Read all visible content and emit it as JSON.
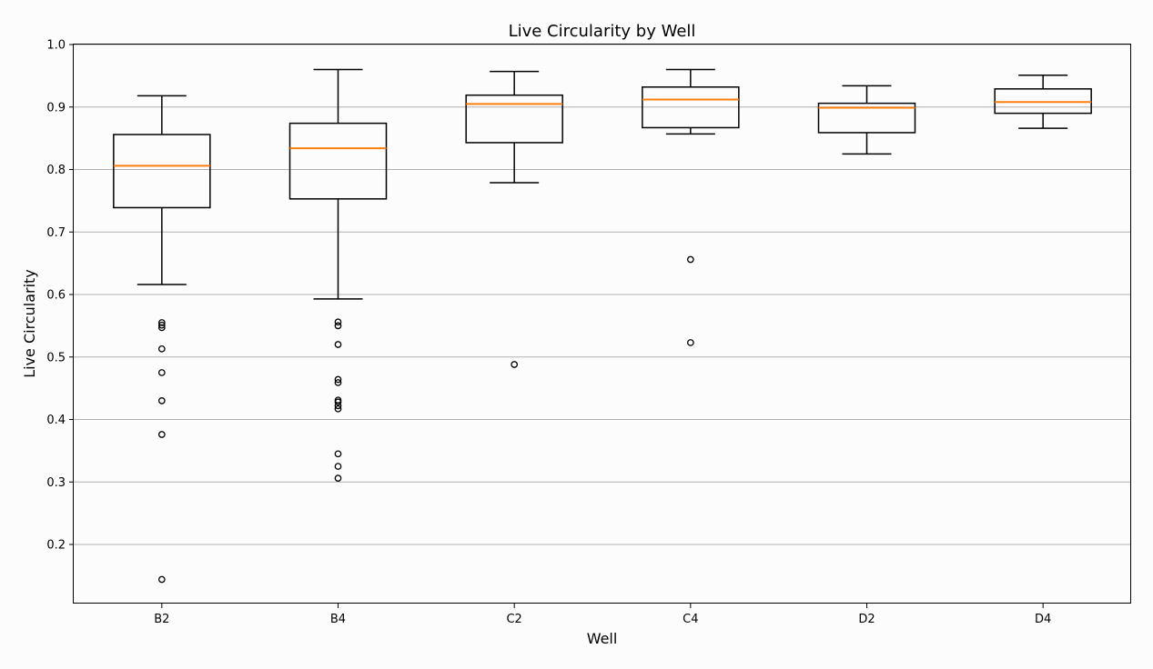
{
  "chart_data": {
    "type": "box",
    "title": "Live Circularity by Well",
    "xlabel": "Well",
    "ylabel": "Live Circularity",
    "categories": [
      "B2",
      "B4",
      "C2",
      "C4",
      "D2",
      "D4"
    ],
    "ylim": [
      0.1,
      1.0
    ],
    "yticks": [
      0.2,
      0.3,
      0.4,
      0.5,
      0.6,
      0.7,
      0.8,
      0.9,
      1.0
    ],
    "ytick_labels": [
      "0.2",
      "0.3",
      "0.4",
      "0.5",
      "0.6",
      "0.7",
      "0.8",
      "0.9",
      "1.0"
    ],
    "grid": "horizontal",
    "colors": {
      "background": "#fcfcfc",
      "box": "#000000",
      "median": "#ff7f0e",
      "grid": "#b0b0b0"
    },
    "boxes": [
      {
        "category": "B2",
        "whisker_low": 0.616,
        "q1": 0.739,
        "median": 0.806,
        "q3": 0.856,
        "whisker_high": 0.918,
        "outliers": [
          0.555,
          0.551,
          0.547,
          0.513,
          0.475,
          0.43,
          0.376,
          0.144
        ]
      },
      {
        "category": "B4",
        "whisker_low": 0.593,
        "q1": 0.753,
        "median": 0.834,
        "q3": 0.874,
        "whisker_high": 0.96,
        "outliers": [
          0.556,
          0.55,
          0.52,
          0.464,
          0.459,
          0.431,
          0.428,
          0.422,
          0.417,
          0.345,
          0.325,
          0.306
        ]
      },
      {
        "category": "C2",
        "whisker_low": 0.779,
        "q1": 0.843,
        "median": 0.905,
        "q3": 0.919,
        "whisker_high": 0.957,
        "outliers": [
          0.488
        ]
      },
      {
        "category": "C4",
        "whisker_low": 0.857,
        "q1": 0.867,
        "median": 0.912,
        "q3": 0.932,
        "whisker_high": 0.96,
        "outliers": [
          0.656,
          0.523
        ]
      },
      {
        "category": "D2",
        "whisker_low": 0.825,
        "q1": 0.859,
        "median": 0.899,
        "q3": 0.906,
        "whisker_high": 0.934,
        "outliers": []
      },
      {
        "category": "D4",
        "whisker_low": 0.866,
        "q1": 0.89,
        "median": 0.908,
        "q3": 0.929,
        "whisker_high": 0.951,
        "outliers": []
      }
    ]
  }
}
